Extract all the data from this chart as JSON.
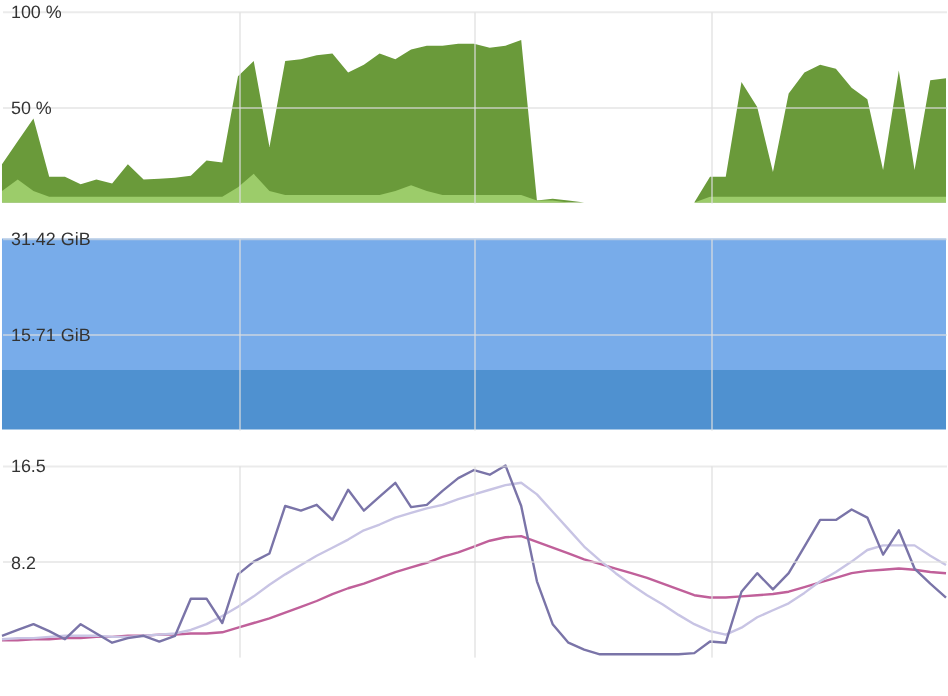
{
  "chart_data": [
    {
      "type": "area",
      "categories": [
        null,
        null,
        null,
        null,
        null,
        null,
        null,
        null,
        null,
        null,
        null,
        null,
        null,
        null,
        null,
        null,
        null,
        null,
        null,
        null,
        null,
        null,
        null,
        null,
        null,
        null,
        null,
        null,
        null,
        null,
        null,
        null,
        null,
        null,
        null,
        null,
        null,
        null,
        null,
        null,
        null,
        null,
        null,
        null,
        null,
        null,
        null,
        null,
        null,
        null,
        null,
        null,
        null,
        null,
        null,
        null,
        null,
        null,
        null,
        null,
        null
      ],
      "ylim": [
        0,
        100
      ],
      "yticks": [
        {
          "value": 50,
          "label": "50 %"
        },
        {
          "value": 100,
          "label": "100 %"
        }
      ],
      "grid": true,
      "tick_labels": "y",
      "series": [
        {
          "color": "#6a9a3a",
          "values": [
            20,
            32,
            44,
            13.5,
            13.5,
            9.5,
            12,
            10,
            20,
            12,
            12.5,
            13,
            14,
            22,
            21,
            66,
            74,
            29,
            74,
            75,
            77,
            78,
            68,
            72,
            78,
            75,
            80,
            82,
            82,
            83,
            83,
            81,
            82,
            85,
            1,
            2,
            1,
            0,
            0,
            0,
            0,
            0,
            0,
            0,
            0,
            13.5,
            13.5,
            63,
            50,
            16,
            57,
            68,
            72,
            70,
            60,
            54,
            17,
            69,
            17,
            64,
            65
          ]
        },
        {
          "color": "#9ccc6a",
          "values": [
            6,
            12,
            6,
            3,
            3,
            3,
            3,
            3,
            3,
            3,
            3,
            3,
            3,
            3,
            3,
            8,
            15,
            6,
            4,
            4,
            4,
            4,
            4,
            4,
            4,
            6,
            9,
            6,
            4,
            4,
            4,
            4,
            4,
            4,
            1,
            1,
            0,
            0,
            0,
            0,
            0,
            0,
            0,
            0,
            0,
            3,
            3,
            3,
            3,
            3,
            3,
            3,
            3,
            3,
            3,
            3,
            3,
            3,
            3,
            3,
            3
          ]
        }
      ]
    },
    {
      "type": "area",
      "categories": [
        null,
        null,
        null,
        null,
        null,
        null,
        null,
        null,
        null,
        null,
        null,
        null,
        null,
        null,
        null,
        null,
        null,
        null,
        null,
        null,
        null,
        null,
        null,
        null,
        null,
        null,
        null,
        null,
        null,
        null,
        null,
        null,
        null,
        null,
        null,
        null,
        null,
        null,
        null,
        null,
        null,
        null,
        null,
        null,
        null,
        null,
        null,
        null,
        null,
        null,
        null,
        null,
        null,
        null,
        null,
        null,
        null,
        null,
        null,
        null,
        null
      ],
      "ylim": [
        0,
        31.42
      ],
      "yticks": [
        {
          "value": 15.71,
          "label": "15.71 GiB"
        },
        {
          "value": 31.42,
          "label": "31.42 GiB"
        }
      ],
      "grid": true,
      "tick_labels": "y",
      "series": [
        {
          "color": "#4f91d0",
          "values": [
            9.8,
            9.8,
            9.8,
            9.8,
            9.8,
            9.8,
            9.8,
            9.8,
            9.8,
            9.8,
            9.8,
            9.8,
            9.8,
            9.8,
            9.8,
            9.8,
            9.8,
            9.8,
            9.8,
            9.8,
            9.8,
            9.8,
            9.8,
            9.8,
            9.8,
            9.8,
            9.8,
            9.8,
            9.8,
            9.8,
            9.8,
            9.8,
            9.8,
            9.8,
            9.8,
            9.8,
            9.8,
            9.8,
            9.8,
            9.8,
            9.8,
            9.8,
            9.8,
            9.8,
            9.8,
            9.8,
            9.8,
            9.8,
            9.8,
            9.8,
            9.8,
            9.8,
            9.8,
            9.8,
            9.8,
            9.8,
            9.8,
            9.8,
            9.8,
            9.8,
            9.8
          ]
        },
        {
          "color": "#78acea",
          "values": [
            21.6,
            21.6,
            21.6,
            21.6,
            21.6,
            21.6,
            21.6,
            21.6,
            21.6,
            21.6,
            21.6,
            21.6,
            21.6,
            21.6,
            21.6,
            21.6,
            21.6,
            21.6,
            21.6,
            21.6,
            21.6,
            21.6,
            21.6,
            21.6,
            21.6,
            21.6,
            21.6,
            21.6,
            21.6,
            21.6,
            21.6,
            21.6,
            21.6,
            21.6,
            21.6,
            21.6,
            21.6,
            21.6,
            21.6,
            21.6,
            21.6,
            21.6,
            21.6,
            21.6,
            21.6,
            21.6,
            21.6,
            21.6,
            21.6,
            21.6,
            21.6,
            21.6,
            21.6,
            21.6,
            21.6,
            21.6,
            21.6,
            21.6,
            21.6,
            21.6,
            21.6
          ]
        }
      ],
      "stacked": true
    },
    {
      "type": "line",
      "categories": [
        null,
        null,
        null,
        null,
        null,
        null,
        null,
        null,
        null,
        null,
        null,
        null,
        null,
        null,
        null,
        null,
        null,
        null,
        null,
        null,
        null,
        null,
        null,
        null,
        null,
        null,
        null,
        null,
        null,
        null,
        null,
        null,
        null,
        null,
        null,
        null,
        null,
        null,
        null,
        null,
        null,
        null,
        null,
        null,
        null,
        null,
        null,
        null,
        null,
        null,
        null,
        null,
        null,
        null,
        null,
        null,
        null,
        null,
        null,
        null,
        null
      ],
      "ylim": [
        0,
        16.5
      ],
      "yticks": [
        8.2,
        16.5
      ],
      "grid": true,
      "tick_labels": "y",
      "series": [
        {
          "color": "#c0609a",
          "values": [
            1.4,
            1.4,
            1.5,
            1.5,
            1.6,
            1.6,
            1.7,
            1.7,
            1.8,
            1.8,
            1.9,
            1.9,
            2.0,
            2.0,
            2.1,
            2.5,
            2.9,
            3.3,
            3.8,
            4.3,
            4.8,
            5.4,
            5.9,
            6.3,
            6.8,
            7.3,
            7.7,
            8.1,
            8.6,
            9.0,
            9.5,
            10.0,
            10.3,
            10.4,
            9.9,
            9.4,
            8.9,
            8.4,
            8.0,
            7.6,
            7.2,
            6.8,
            6.3,
            5.8,
            5.3,
            5.1,
            5.1,
            5.2,
            5.3,
            5.4,
            5.6,
            6.0,
            6.4,
            6.8,
            7.2,
            7.4,
            7.5,
            7.6,
            7.5,
            7.3,
            7.2
          ]
        },
        {
          "color": "#c8c4e4",
          "values": [
            1.5,
            1.6,
            1.6,
            1.7,
            1.8,
            1.8,
            1.8,
            1.7,
            1.7,
            1.8,
            1.9,
            2.0,
            2.3,
            2.8,
            3.5,
            4.3,
            5.2,
            6.2,
            7.1,
            7.9,
            8.7,
            9.4,
            10.1,
            10.9,
            11.4,
            12.0,
            12.4,
            12.8,
            13.1,
            13.6,
            14.0,
            14.4,
            14.8,
            15.0,
            14.0,
            12.5,
            11.0,
            9.5,
            8.3,
            7.2,
            6.2,
            5.3,
            4.5,
            3.6,
            2.8,
            2.2,
            1.9,
            2.5,
            3.4,
            4.0,
            4.6,
            5.5,
            6.5,
            7.3,
            8.2,
            9.2,
            9.6,
            9.6,
            9.6,
            8.7,
            7.9
          ]
        },
        {
          "color": "#7a74a8",
          "values": [
            1.8,
            2.3,
            2.8,
            2.2,
            1.5,
            2.8,
            2.0,
            1.2,
            1.6,
            1.8,
            1.3,
            1.8,
            5.0,
            5.0,
            2.9,
            7.1,
            8.2,
            8.9,
            13.0,
            12.6,
            13.1,
            11.8,
            14.4,
            12.6,
            13.8,
            15.0,
            12.9,
            13.1,
            14.3,
            15.4,
            16.1,
            15.7,
            16.5,
            13.0,
            6.5,
            2.8,
            1.2,
            0.6,
            0.2,
            0.2,
            0.2,
            0.2,
            0.2,
            0.2,
            0.3,
            1.3,
            1.2,
            5.6,
            7.2,
            5.8,
            7.2,
            9.5,
            11.8,
            11.8,
            12.7,
            12.0,
            8.8,
            10.9,
            7.6,
            6.3,
            5.1
          ]
        }
      ]
    }
  ]
}
